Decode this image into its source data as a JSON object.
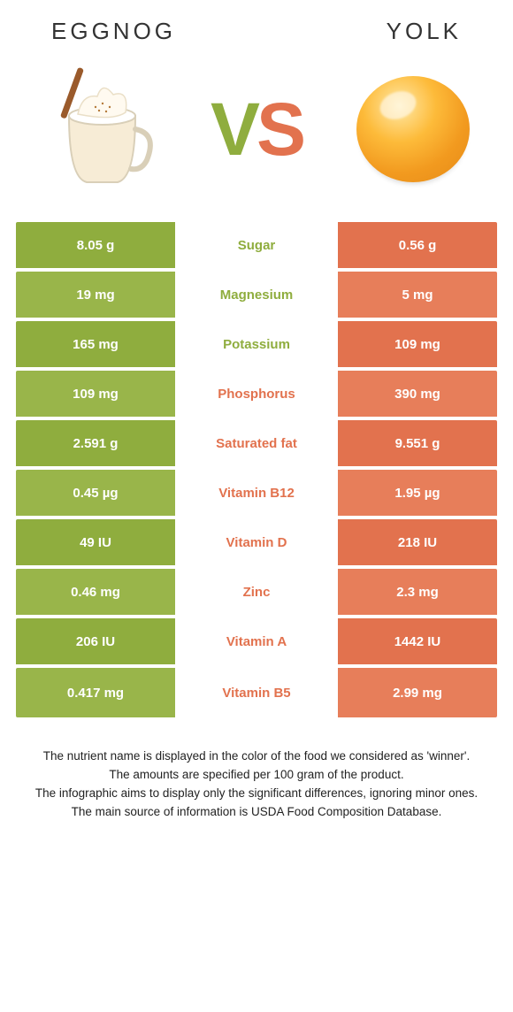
{
  "header": {
    "left_title": "Eggnog",
    "right_title": "Yolk"
  },
  "vs": {
    "v": "V",
    "s": "S"
  },
  "colors": {
    "left": "#8fad3e",
    "right": "#e2724e",
    "left_alt": "#99b54a",
    "right_alt": "#e77e5a"
  },
  "rows": [
    {
      "left": "8.05 g",
      "label": "Sugar",
      "right": "0.56 g",
      "winner": "left"
    },
    {
      "left": "19 mg",
      "label": "Magnesium",
      "right": "5 mg",
      "winner": "left"
    },
    {
      "left": "165 mg",
      "label": "Potassium",
      "right": "109 mg",
      "winner": "left"
    },
    {
      "left": "109 mg",
      "label": "Phosphorus",
      "right": "390 mg",
      "winner": "right"
    },
    {
      "left": "2.591 g",
      "label": "Saturated fat",
      "right": "9.551 g",
      "winner": "right"
    },
    {
      "left": "0.45 µg",
      "label": "Vitamin B12",
      "right": "1.95 µg",
      "winner": "right"
    },
    {
      "left": "49 IU",
      "label": "Vitamin D",
      "right": "218 IU",
      "winner": "right"
    },
    {
      "left": "0.46 mg",
      "label": "Zinc",
      "right": "2.3 mg",
      "winner": "right"
    },
    {
      "left": "206 IU",
      "label": "Vitamin A",
      "right": "1442 IU",
      "winner": "right"
    },
    {
      "left": "0.417 mg",
      "label": "Vitamin B5",
      "right": "2.99 mg",
      "winner": "right"
    }
  ],
  "footer": {
    "l1": "The nutrient name is displayed in the color of the food we considered as 'winner'.",
    "l2": "The amounts are specified per 100 gram of the product.",
    "l3": "The infographic aims to display only the significant differences, ignoring minor ones.",
    "l4": "The main source of information is USDA Food Composition Database."
  }
}
